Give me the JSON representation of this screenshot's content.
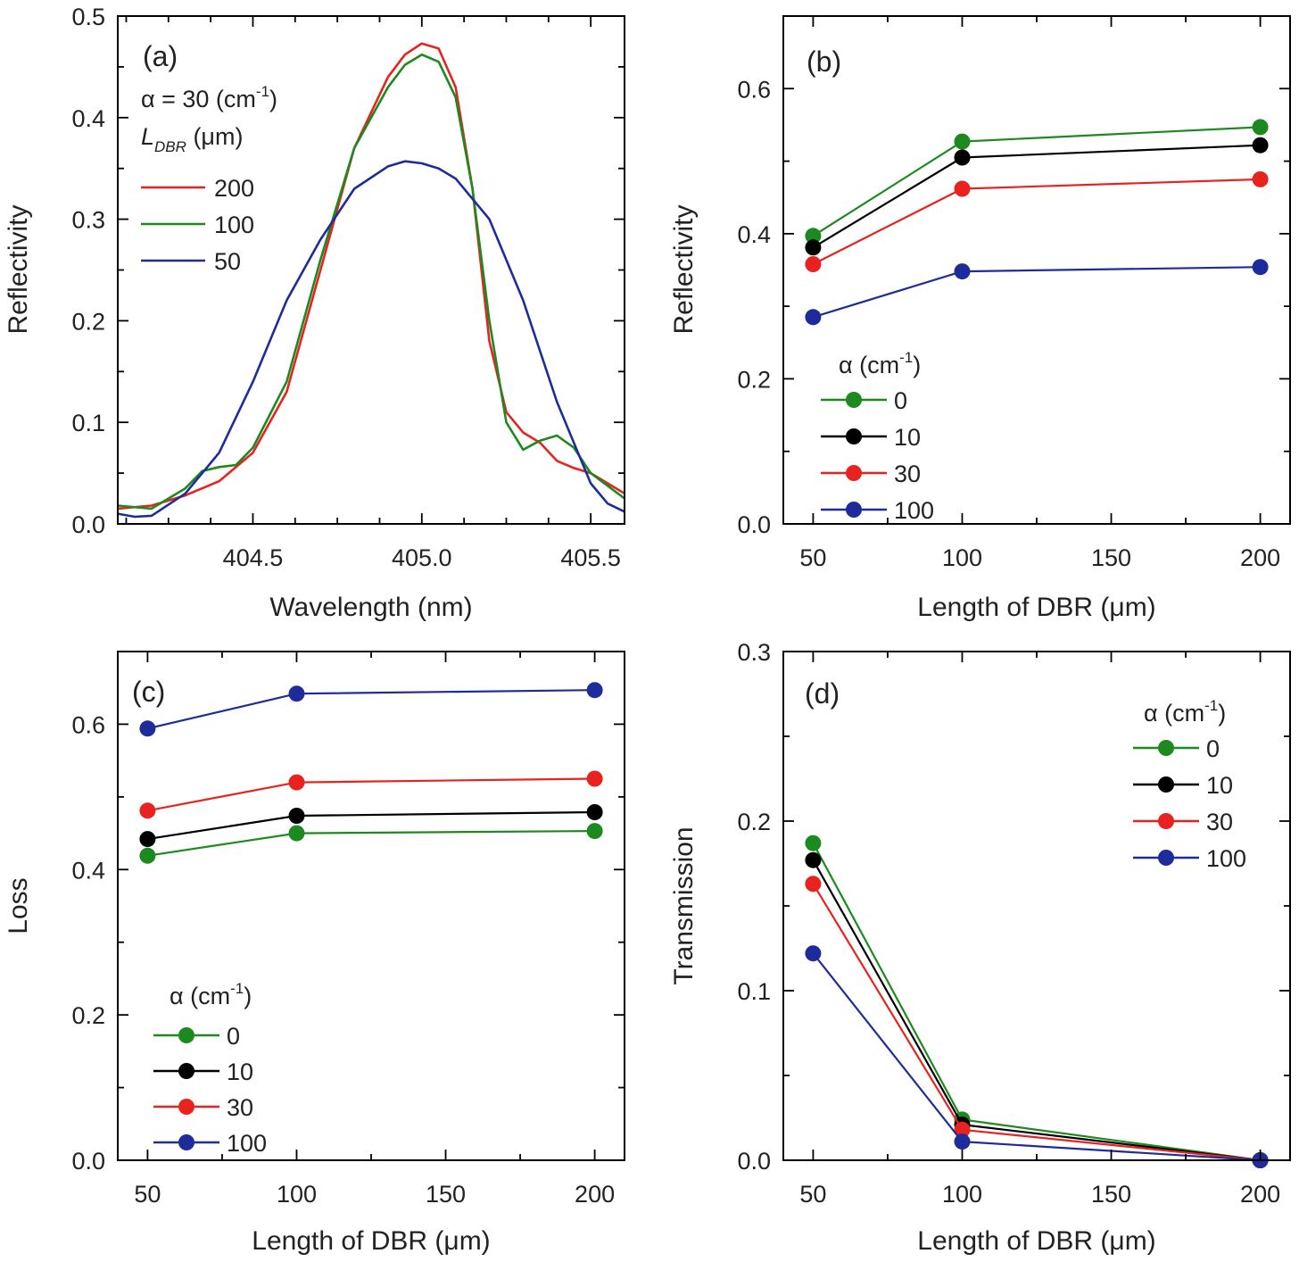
{
  "chart_data": [
    {
      "id": "a",
      "type": "line",
      "panel_label": "(a)",
      "xlabel": "Wavelength (nm)",
      "ylabel": "Reflectivity",
      "xlim": [
        404.1,
        405.6
      ],
      "ylim": [
        0.0,
        0.5
      ],
      "xticks": [
        404.5,
        405.0,
        405.5
      ],
      "xtick_labels": [
        "404.5",
        "405.0",
        "405.5"
      ],
      "yticks": [
        0.0,
        0.1,
        0.2,
        0.3,
        0.4,
        0.5
      ],
      "ytick_labels": [
        "0.0",
        "0.1",
        "0.2",
        "0.3",
        "0.4",
        "0.5"
      ],
      "grid": false,
      "legend": {
        "placement": "top-left",
        "alpha_prefix": "α = 30 (cm",
        "alpha_sup": "-1",
        "alpha_suffix": ")",
        "l_main": "L",
        "l_sub": "DBR",
        "l_suffix": " (μm)",
        "entries": [
          "200",
          "100",
          "50"
        ]
      },
      "series": [
        {
          "name": "200",
          "color": "#e8231f",
          "x": [
            404.1,
            404.2,
            404.3,
            404.4,
            404.5,
            404.6,
            404.7,
            404.8,
            404.9,
            404.95,
            405.0,
            405.05,
            405.1,
            405.15,
            405.2,
            405.25,
            405.3,
            405.35,
            405.4,
            405.45,
            405.5,
            405.6
          ],
          "y": [
            0.015,
            0.018,
            0.028,
            0.042,
            0.07,
            0.13,
            0.25,
            0.37,
            0.44,
            0.462,
            0.473,
            0.468,
            0.43,
            0.33,
            0.18,
            0.11,
            0.09,
            0.08,
            0.062,
            0.055,
            0.05,
            0.03
          ]
        },
        {
          "name": "100",
          "color": "#1c8a1f",
          "x": [
            404.1,
            404.2,
            404.3,
            404.35,
            404.4,
            404.45,
            404.5,
            404.6,
            404.7,
            404.8,
            404.9,
            404.95,
            405.0,
            405.05,
            405.1,
            405.15,
            405.2,
            405.25,
            405.3,
            405.35,
            405.4,
            405.45,
            405.5,
            405.6
          ],
          "y": [
            0.018,
            0.015,
            0.035,
            0.052,
            0.056,
            0.058,
            0.075,
            0.14,
            0.26,
            0.37,
            0.43,
            0.452,
            0.462,
            0.455,
            0.42,
            0.33,
            0.2,
            0.1,
            0.073,
            0.082,
            0.087,
            0.075,
            0.05,
            0.025
          ]
        },
        {
          "name": "50",
          "color": "#1e2c9b",
          "x": [
            404.1,
            404.15,
            404.2,
            404.3,
            404.4,
            404.5,
            404.6,
            404.7,
            404.8,
            404.9,
            404.95,
            405.0,
            405.05,
            405.1,
            405.2,
            405.3,
            405.4,
            405.45,
            405.5,
            405.55,
            405.6
          ],
          "y": [
            0.01,
            0.007,
            0.008,
            0.03,
            0.07,
            0.14,
            0.22,
            0.28,
            0.33,
            0.352,
            0.357,
            0.355,
            0.35,
            0.34,
            0.3,
            0.22,
            0.12,
            0.08,
            0.04,
            0.02,
            0.012
          ]
        }
      ]
    },
    {
      "id": "b",
      "type": "line",
      "panel_label": "(b)",
      "xlabel": "Length of DBR (μm)",
      "ylabel": "Reflectivity",
      "xlim": [
        40,
        210
      ],
      "ylim": [
        0.0,
        0.7
      ],
      "xticks": [
        50,
        100,
        150,
        200
      ],
      "xtick_labels": [
        "50",
        "100",
        "150",
        "200"
      ],
      "yticks": [
        0.0,
        0.2,
        0.4,
        0.6
      ],
      "ytick_labels": [
        "0.0",
        "0.2",
        "0.4",
        "0.6"
      ],
      "grid": false,
      "legend": {
        "placement": "bottom-left",
        "title_main": "α (cm",
        "title_sup": "-1",
        "title_suffix": ")",
        "entries": [
          "0",
          "10",
          "30",
          "100"
        ]
      },
      "x": [
        50,
        100,
        200
      ],
      "series": [
        {
          "name": "0",
          "color": "#1c8a1f",
          "values": [
            0.397,
            0.527,
            0.547
          ]
        },
        {
          "name": "10",
          "color": "#000000",
          "values": [
            0.381,
            0.505,
            0.522
          ]
        },
        {
          "name": "30",
          "color": "#e8231f",
          "values": [
            0.358,
            0.462,
            0.475
          ]
        },
        {
          "name": "100",
          "color": "#1e2c9b",
          "values": [
            0.285,
            0.348,
            0.354
          ]
        }
      ]
    },
    {
      "id": "c",
      "type": "line",
      "panel_label": "(c)",
      "xlabel": "Length of DBR (μm)",
      "ylabel": "Loss",
      "xlim": [
        40,
        210
      ],
      "ylim": [
        0.0,
        0.7
      ],
      "xticks": [
        50,
        100,
        150,
        200
      ],
      "xtick_labels": [
        "50",
        "100",
        "150",
        "200"
      ],
      "yticks": [
        0.0,
        0.2,
        0.4,
        0.6
      ],
      "ytick_labels": [
        "0.0",
        "0.2",
        "0.4",
        "0.6"
      ],
      "grid": false,
      "legend": {
        "placement": "bottom-left",
        "title_main": "α (cm",
        "title_sup": "-1",
        "title_suffix": ")",
        "entries": [
          "0",
          "10",
          "30",
          "100"
        ]
      },
      "x": [
        50,
        100,
        200
      ],
      "series": [
        {
          "name": "0",
          "color": "#1c8a1f",
          "values": [
            0.419,
            0.45,
            0.453
          ]
        },
        {
          "name": "10",
          "color": "#000000",
          "values": [
            0.442,
            0.474,
            0.479
          ]
        },
        {
          "name": "30",
          "color": "#e8231f",
          "values": [
            0.481,
            0.52,
            0.525
          ]
        },
        {
          "name": "100",
          "color": "#1e2c9b",
          "values": [
            0.594,
            0.642,
            0.647
          ]
        }
      ]
    },
    {
      "id": "d",
      "type": "line",
      "panel_label": "(d)",
      "xlabel": "Length of DBR (μm)",
      "ylabel": "Transmission",
      "xlim": [
        40,
        210
      ],
      "ylim": [
        0.0,
        0.3
      ],
      "xticks": [
        50,
        100,
        150,
        200
      ],
      "xtick_labels": [
        "50",
        "100",
        "150",
        "200"
      ],
      "yticks": [
        0.0,
        0.1,
        0.2,
        0.3
      ],
      "ytick_labels": [
        "0.0",
        "0.1",
        "0.2",
        "0.3"
      ],
      "grid": false,
      "legend": {
        "placement": "top-right",
        "title_main": "α (cm",
        "title_sup": "-1",
        "title_suffix": ")",
        "entries": [
          "0",
          "10",
          "30",
          "100"
        ]
      },
      "x": [
        50,
        100,
        200
      ],
      "series": [
        {
          "name": "0",
          "color": "#1c8a1f",
          "values": [
            0.187,
            0.024,
            0.0
          ]
        },
        {
          "name": "10",
          "color": "#000000",
          "values": [
            0.177,
            0.021,
            0.0
          ]
        },
        {
          "name": "30",
          "color": "#e8231f",
          "values": [
            0.163,
            0.018,
            0.0
          ]
        },
        {
          "name": "100",
          "color": "#1e2c9b",
          "values": [
            0.122,
            0.011,
            0.0
          ]
        }
      ]
    }
  ]
}
